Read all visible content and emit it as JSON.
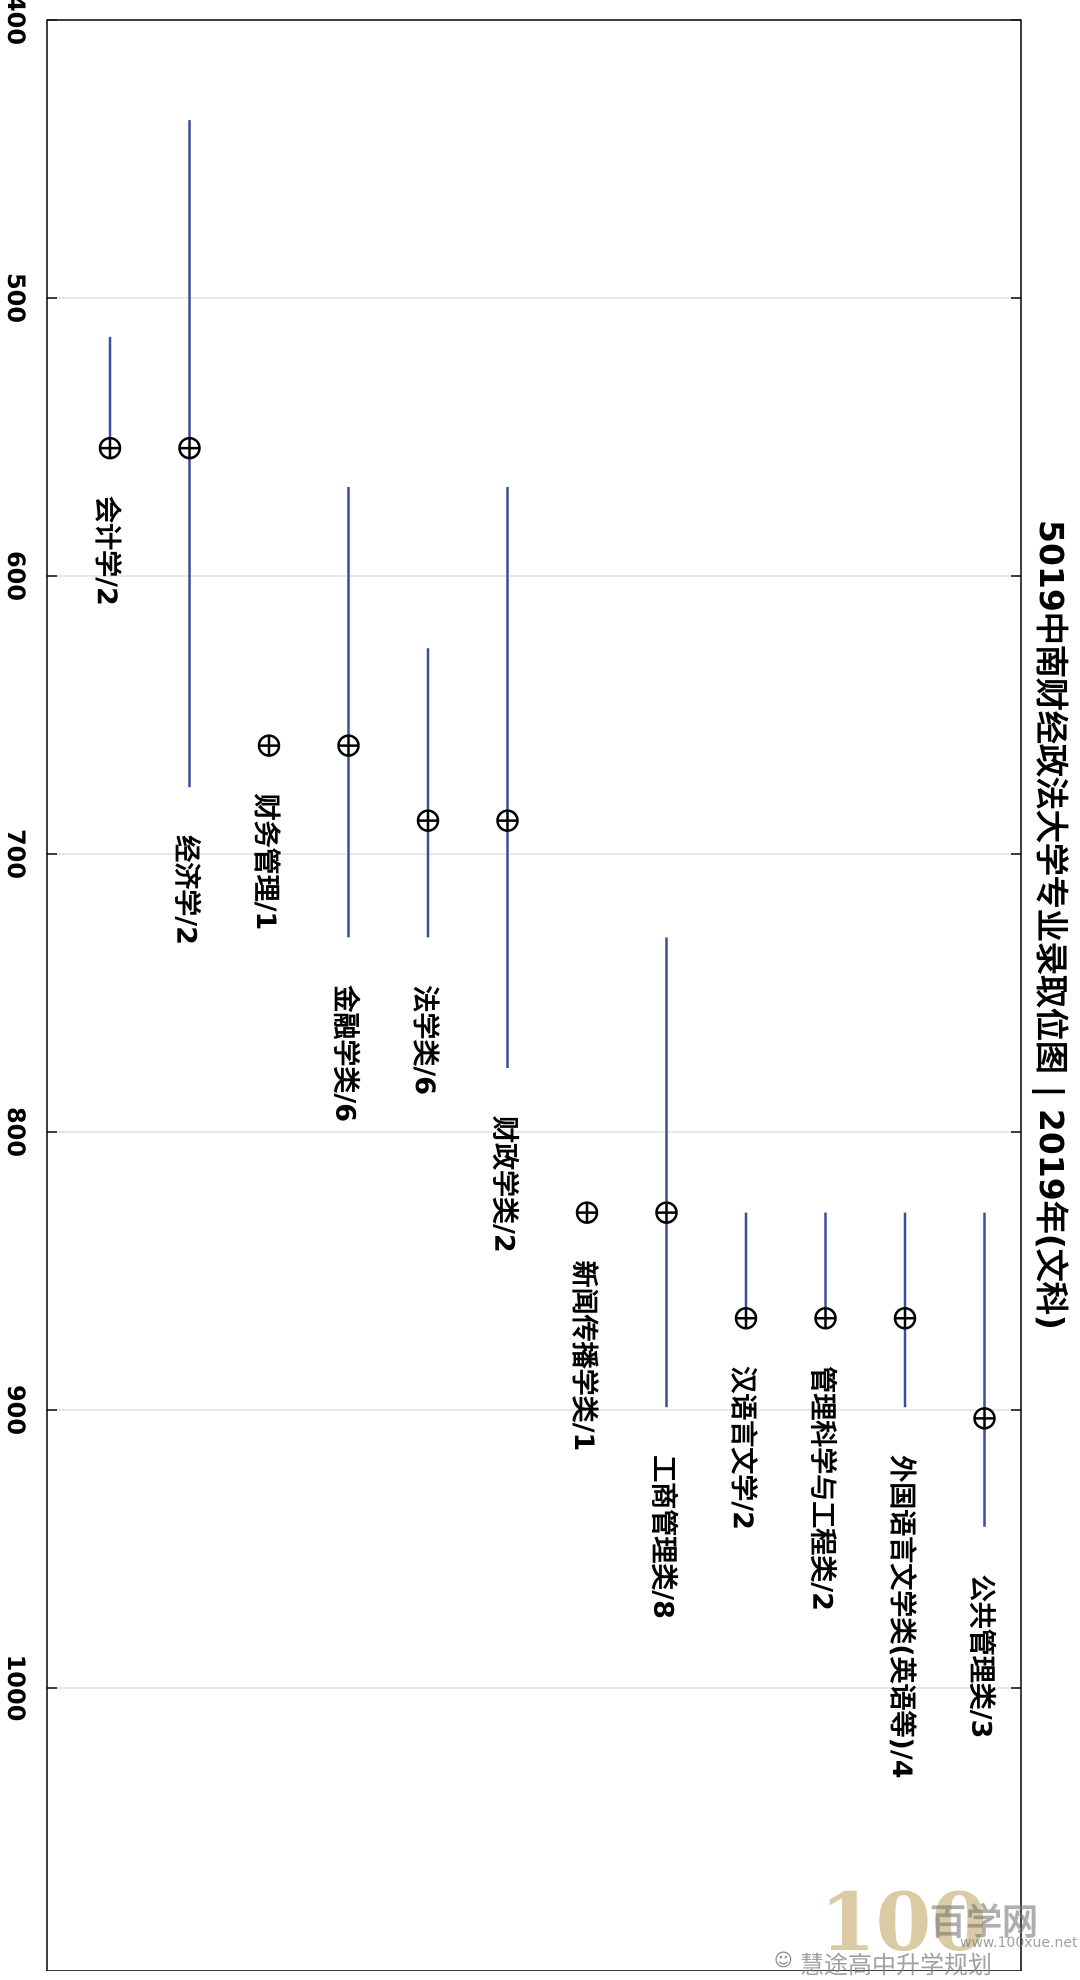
{
  "chart_data": {
    "type": "range",
    "title": "5019中南财经政法大学专业录取位图 | 2019年(文科)",
    "orientation": "rotated",
    "xlim": [
      400,
      1100
    ],
    "xticks": [
      400,
      500,
      600,
      700,
      800,
      900,
      1000
    ],
    "grid": true,
    "colors": {
      "range_line": "#3a4f9a",
      "marker": "#000000",
      "grid": "#d0d0d0",
      "axis": "#000000"
    },
    "series": [
      {
        "label": "会计学/2",
        "min": 514,
        "max": 554,
        "marker": 554
      },
      {
        "label": "经济学/2",
        "min": 436,
        "max": 676,
        "marker": 554
      },
      {
        "label": "财务管理/1",
        "min": 661,
        "max": 661,
        "marker": 661
      },
      {
        "label": "金融学类/6",
        "min": 568,
        "max": 730,
        "marker": 661
      },
      {
        "label": "法学类/6",
        "min": 626,
        "max": 730,
        "marker": 688
      },
      {
        "label": "财政学类/2",
        "min": 568,
        "max": 777,
        "marker": 688
      },
      {
        "label": "新闻传播学类/1",
        "min": 829,
        "max": 829,
        "marker": 829
      },
      {
        "label": "工商管理类/8",
        "min": 730,
        "max": 899,
        "marker": 829
      },
      {
        "label": "汉语言文学/2",
        "min": 829,
        "max": 867,
        "marker": 867
      },
      {
        "label": "管理科学与工程类/2",
        "min": 829,
        "max": 867,
        "marker": 867
      },
      {
        "label": "外国语言文学类(英语等)/4",
        "min": 829,
        "max": 899,
        "marker": 867
      },
      {
        "label": "公共管理类/3",
        "min": 829,
        "max": 942,
        "marker": 903
      }
    ]
  },
  "watermark": {
    "brand_number": "100",
    "brand_text": "百学网",
    "account": "慧途高中升学规划",
    "url": "www.100xue.net"
  }
}
